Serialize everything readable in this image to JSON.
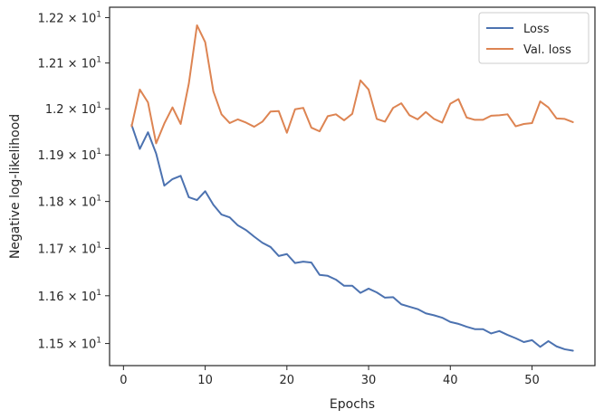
{
  "chart_data": {
    "type": "line",
    "title": "",
    "xlabel": "Epochs",
    "ylabel": "Negative log-likelihood",
    "xlim": [
      -1.7,
      57.7
    ],
    "ylim": [
      11.454,
      12.223
    ],
    "yscale": "log",
    "grid": false,
    "legend_position": "top-right",
    "x_ticks": [
      0,
      10,
      20,
      30,
      40,
      50
    ],
    "x_tick_labels": [
      "0",
      "10",
      "20",
      "30",
      "40",
      "50"
    ],
    "y_ticks": [
      11.5,
      11.6,
      11.7,
      11.8,
      11.9,
      12.0,
      12.1,
      12.2
    ],
    "y_tick_labels": [
      {
        "mantissa": "1.15",
        "base": "10",
        "exp": "1"
      },
      {
        "mantissa": "1.16",
        "base": "10",
        "exp": "1"
      },
      {
        "mantissa": "1.17",
        "base": "10",
        "exp": "1"
      },
      {
        "mantissa": "1.18",
        "base": "10",
        "exp": "1"
      },
      {
        "mantissa": "1.19",
        "base": "10",
        "exp": "1"
      },
      {
        "mantissa": "",
        "base": "10",
        "exp": "1",
        "prefix": "1.2"
      },
      {
        "mantissa": "1.21",
        "base": "10",
        "exp": "1"
      },
      {
        "mantissa": "1.22",
        "base": "10",
        "exp": "1"
      }
    ],
    "x": [
      1,
      2,
      3,
      4,
      5,
      6,
      7,
      8,
      9,
      10,
      11,
      12,
      13,
      14,
      15,
      16,
      17,
      18,
      19,
      20,
      21,
      22,
      23,
      24,
      25,
      26,
      27,
      28,
      29,
      30,
      31,
      32,
      33,
      34,
      35,
      36,
      37,
      38,
      39,
      40,
      41,
      42,
      43,
      44,
      45,
      46,
      47,
      48,
      49,
      50,
      51,
      52,
      53,
      54,
      55
    ],
    "series": [
      {
        "name": "Loss",
        "color": "#4c72b0",
        "values": [
          11.965,
          11.913,
          11.949,
          11.903,
          11.834,
          11.848,
          11.855,
          11.809,
          11.803,
          11.822,
          11.793,
          11.772,
          11.766,
          11.749,
          11.739,
          11.725,
          11.712,
          11.703,
          11.684,
          11.688,
          11.669,
          11.672,
          11.67,
          11.644,
          11.642,
          11.634,
          11.621,
          11.621,
          11.606,
          11.615,
          11.607,
          11.596,
          11.597,
          11.582,
          11.577,
          11.572,
          11.563,
          11.559,
          11.554,
          11.545,
          11.541,
          11.535,
          11.53,
          11.53,
          11.521,
          11.526,
          11.518,
          11.511,
          11.503,
          11.507,
          11.493,
          11.505,
          11.494,
          11.488,
          11.485
        ]
      },
      {
        "name": "Val. loss",
        "color": "#dd8452",
        "values": [
          11.962,
          12.042,
          12.014,
          11.925,
          11.968,
          12.003,
          11.967,
          12.055,
          12.183,
          12.146,
          12.038,
          11.988,
          11.969,
          11.977,
          11.97,
          11.961,
          11.972,
          11.994,
          11.995,
          11.948,
          11.999,
          12.002,
          11.959,
          11.951,
          11.984,
          11.988,
          11.975,
          11.989,
          12.062,
          12.042,
          11.978,
          11.972,
          12.002,
          12.012,
          11.986,
          11.977,
          11.993,
          11.978,
          11.97,
          12.011,
          12.021,
          11.981,
          11.976,
          11.976,
          11.985,
          11.986,
          11.988,
          11.962,
          11.967,
          11.969,
          12.016,
          12.003,
          11.979,
          11.978,
          11.971
        ]
      }
    ]
  }
}
